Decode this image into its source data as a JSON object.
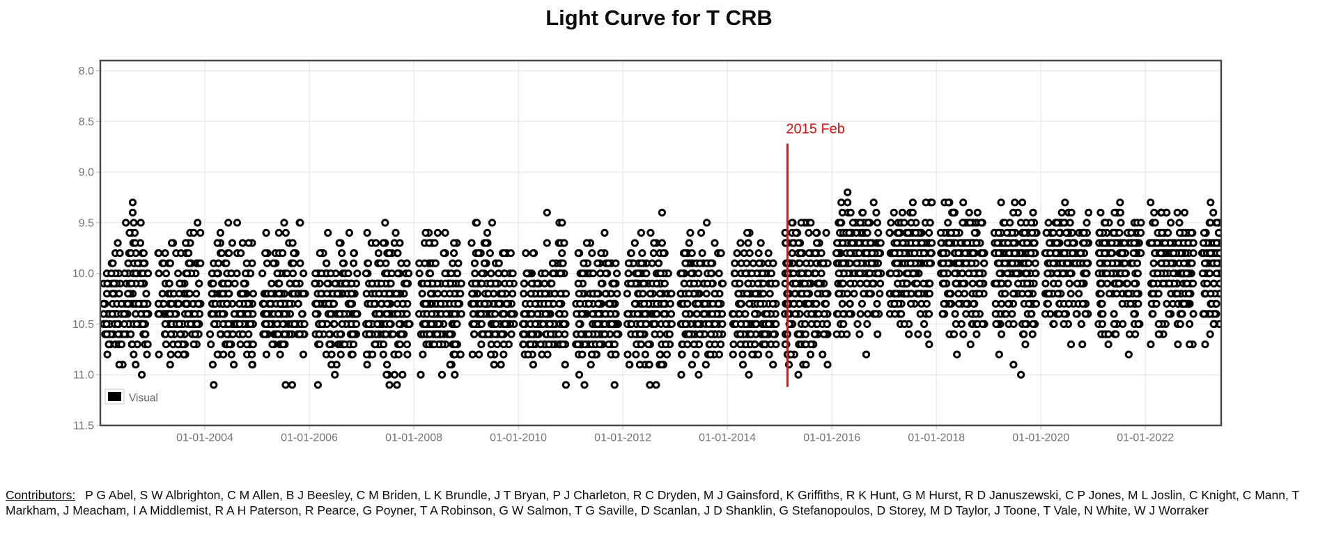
{
  "page": {
    "background": "#ffffff"
  },
  "chart_data": {
    "type": "scatter",
    "title": "Light Curve for T CRB",
    "x_axis": {
      "label": "",
      "range_years": [
        2002.0,
        2023.45
      ],
      "tick_years": [
        2004,
        2006,
        2008,
        2010,
        2012,
        2014,
        2016,
        2018,
        2020,
        2022
      ],
      "tick_labels": [
        "01-01-2004",
        "01-01-2006",
        "01-01-2008",
        "01-01-2010",
        "01-01-2012",
        "01-01-2014",
        "01-01-2016",
        "01-01-2018",
        "01-01-2020",
        "01-01-2022"
      ],
      "grid": true
    },
    "y_axis": {
      "label": "",
      "inverted": true,
      "range": [
        7.9,
        11.5
      ],
      "tick_values": [
        8.0,
        8.5,
        9.0,
        9.5,
        10.0,
        10.5,
        11.0,
        11.5
      ],
      "tick_labels": [
        "8.0",
        "8.5",
        "9.0",
        "9.5",
        "10.0",
        "10.5",
        "11.0",
        "11.5"
      ],
      "grid": true
    },
    "legend": {
      "position": "inside-bottom-left",
      "entries": [
        {
          "label": "Visual",
          "swatch_color": "#000000"
        }
      ]
    },
    "annotation": {
      "label": "2015 Feb",
      "x_year": 2015.15,
      "y_from_mag": 8.72,
      "y_to_mag": 11.12,
      "color": "#f20a0a"
    },
    "marker": {
      "shape": "open-circle",
      "color": "#000000",
      "radius_px": 4.1,
      "stroke_px": 3
    },
    "colors": {
      "grid": "#e3e3e3",
      "frame": "#4a4a4a",
      "tick_text": "#757575",
      "legend_text": "#666666",
      "plot_background": "#ffffff"
    },
    "mag_quantization": 0.1,
    "seed": 20150215,
    "distributions": {
      "pre": [
        [
          9.5,
          0.4
        ],
        [
          9.6,
          0.8
        ],
        [
          9.7,
          1.6
        ],
        [
          9.8,
          3.2
        ],
        [
          9.9,
          5
        ],
        [
          10.0,
          7
        ],
        [
          10.1,
          8
        ],
        [
          10.2,
          10
        ],
        [
          10.3,
          12
        ],
        [
          10.4,
          13.5
        ],
        [
          10.5,
          13.5
        ],
        [
          10.6,
          11
        ],
        [
          10.7,
          6
        ],
        [
          10.8,
          3.4
        ],
        [
          10.9,
          1.8
        ],
        [
          11.0,
          0.9
        ],
        [
          11.1,
          0.4
        ]
      ],
      "post": [
        [
          9.3,
          0.5
        ],
        [
          9.4,
          1.6
        ],
        [
          9.5,
          4.5
        ],
        [
          9.6,
          8
        ],
        [
          9.7,
          14
        ],
        [
          9.8,
          14.5
        ],
        [
          9.9,
          12
        ],
        [
          10.0,
          10
        ],
        [
          10.1,
          8
        ],
        [
          10.2,
          6.5
        ],
        [
          10.3,
          5.5
        ],
        [
          10.4,
          4.5
        ],
        [
          10.5,
          3
        ],
        [
          10.6,
          1.6
        ],
        [
          10.7,
          0.8
        ],
        [
          10.8,
          0.35
        ],
        [
          10.9,
          0.15
        ],
        [
          11.0,
          0.1
        ]
      ],
      "transition": [
        [
          9.5,
          2
        ],
        [
          9.6,
          4
        ],
        [
          9.7,
          6
        ],
        [
          9.8,
          7
        ],
        [
          9.9,
          8
        ],
        [
          10.0,
          8
        ],
        [
          10.1,
          8
        ],
        [
          10.2,
          8
        ],
        [
          10.3,
          8
        ],
        [
          10.4,
          7.5
        ],
        [
          10.5,
          7.5
        ],
        [
          10.6,
          5
        ],
        [
          10.7,
          4
        ],
        [
          10.8,
          2.5
        ],
        [
          10.9,
          1.5
        ],
        [
          11.0,
          0.8
        ]
      ]
    },
    "seasons": [
      {
        "start": 2002.06,
        "end": 2002.92,
        "n": 170,
        "dist": "pre",
        "spikes": [
          [
            2002.6,
            9.6
          ],
          [
            2002.62,
            9.3
          ],
          [
            2002.62,
            9.4
          ],
          [
            2002.63,
            9.7
          ],
          [
            2002.64,
            9.5
          ],
          [
            2002.66,
            9.6
          ],
          [
            2002.55,
            9.8
          ],
          [
            2002.68,
            9.8
          ]
        ]
      },
      {
        "start": 2003.1,
        "end": 2003.92,
        "n": 165,
        "dist": "pre",
        "spikes": [
          [
            2003.68,
            9.7
          ],
          [
            2003.72,
            9.7
          ],
          [
            2003.45,
            9.8
          ]
        ]
      },
      {
        "start": 2004.1,
        "end": 2004.93,
        "n": 170,
        "dist": "pre",
        "spikes": [
          [
            2004.62,
            9.5
          ],
          [
            2004.62,
            9.8
          ],
          [
            2004.3,
            9.8
          ]
        ]
      },
      {
        "start": 2005.1,
        "end": 2005.92,
        "n": 165,
        "dist": "pre",
        "spikes": [
          [
            2005.55,
            9.6
          ],
          [
            2005.35,
            9.8
          ]
        ]
      },
      {
        "start": 2006.1,
        "end": 2006.92,
        "n": 170,
        "dist": "pre",
        "spikes": [
          [
            2006.6,
            9.7
          ],
          [
            2006.62,
            9.8
          ]
        ]
      },
      {
        "start": 2007.08,
        "end": 2007.92,
        "n": 175,
        "dist": "pre",
        "spikes": [
          [
            2007.45,
            9.5
          ],
          [
            2007.45,
            9.7
          ],
          [
            2007.5,
            9.8
          ]
        ]
      },
      {
        "start": 2008.1,
        "end": 2008.92,
        "n": 170,
        "dist": "pre",
        "spikes": [
          [
            2008.6,
            9.6
          ],
          [
            2008.6,
            9.8
          ]
        ]
      },
      {
        "start": 2009.1,
        "end": 2009.92,
        "n": 170,
        "dist": "pre",
        "spikes": [
          [
            2009.35,
            9.7
          ],
          [
            2009.7,
            9.8
          ]
        ]
      },
      {
        "start": 2010.08,
        "end": 2010.92,
        "n": 175,
        "dist": "pre",
        "spikes": [
          [
            2010.55,
            9.4
          ],
          [
            2010.55,
            9.7
          ],
          [
            2010.3,
            9.8
          ]
        ]
      },
      {
        "start": 2011.1,
        "end": 2011.92,
        "n": 170,
        "dist": "pre",
        "spikes": [
          [
            2011.65,
            9.6
          ],
          [
            2011.65,
            9.8
          ]
        ]
      },
      {
        "start": 2012.08,
        "end": 2012.94,
        "n": 180,
        "dist": "pre",
        "spikes": [
          [
            2012.35,
            9.6
          ],
          [
            2012.75,
            9.4
          ],
          [
            2012.75,
            9.7
          ]
        ]
      },
      {
        "start": 2013.1,
        "end": 2013.92,
        "n": 170,
        "dist": "pre",
        "spikes": [
          [
            2013.5,
            9.6
          ],
          [
            2013.52,
            9.8
          ]
        ]
      },
      {
        "start": 2014.08,
        "end": 2014.94,
        "n": 175,
        "dist": "pre",
        "spikes": [
          [
            2014.4,
            9.7
          ],
          [
            2014.6,
            9.8
          ]
        ]
      },
      {
        "start": 2015.1,
        "end": 2015.92,
        "n": 200,
        "dist": "transition",
        "spikes": [
          [
            2015.5,
            9.5
          ],
          [
            2015.55,
            9.5
          ]
        ]
      },
      {
        "start": 2016.08,
        "end": 2016.94,
        "n": 220,
        "dist": "post",
        "spikes": [
          [
            2016.3,
            9.2
          ],
          [
            2016.3,
            9.3
          ],
          [
            2016.31,
            9.4
          ],
          [
            2016.36,
            9.4
          ],
          [
            2016.8,
            9.3
          ],
          [
            2016.85,
            9.4
          ]
        ]
      },
      {
        "start": 2017.1,
        "end": 2017.92,
        "n": 210,
        "dist": "post",
        "spikes": [
          [
            2017.5,
            9.4
          ],
          [
            2017.55,
            9.3
          ]
        ]
      },
      {
        "start": 2018.08,
        "end": 2018.92,
        "n": 215,
        "dist": "post",
        "spikes": [
          [
            2018.25,
            9.3
          ],
          [
            2018.3,
            9.4
          ]
        ]
      },
      {
        "start": 2019.1,
        "end": 2019.92,
        "n": 210,
        "dist": "post",
        "spikes": [
          [
            2019.5,
            9.3
          ],
          [
            2019.85,
            9.4
          ]
        ]
      },
      {
        "start": 2020.08,
        "end": 2020.92,
        "n": 215,
        "dist": "post",
        "spikes": [
          [
            2020.4,
            9.4
          ]
        ]
      },
      {
        "start": 2021.1,
        "end": 2021.92,
        "n": 210,
        "dist": "post",
        "spikes": [
          [
            2021.45,
            9.4
          ],
          [
            2021.5,
            9.4
          ]
        ]
      },
      {
        "start": 2022.08,
        "end": 2022.92,
        "n": 215,
        "dist": "post",
        "spikes": [
          [
            2022.3,
            9.4
          ],
          [
            2022.75,
            9.4
          ]
        ]
      },
      {
        "start": 2023.08,
        "end": 2023.44,
        "n": 95,
        "dist": "post",
        "spikes": [
          [
            2023.3,
            9.4
          ]
        ]
      }
    ]
  },
  "footer": {
    "contributors_label": "Contributors:",
    "contributors_names": "P G Abel, S W Albrighton, C M Allen, B J Beesley, C M Briden, L K Brundle, J T Bryan, P J Charleton, R C Dryden, M J Gainsford, K Griffiths, R K Hunt, G M Hurst, R D Januszewski, C P Jones, M L Joslin, C Knight, C Mann, T Markham, J Meacham, I A Middlemist, R A H Paterson, R Pearce, G Poyner, T A Robinson, G W Salmon, T G Saville, D Scanlan, J D Shanklin, G Stefanopoulos, D Storey, M D Taylor, J Toone, T Vale, N White, W J Worraker"
  }
}
